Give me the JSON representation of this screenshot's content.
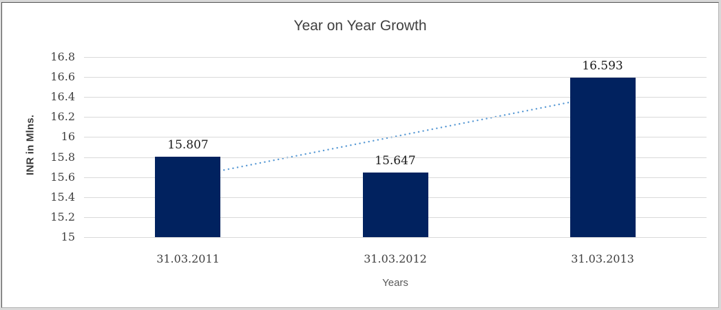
{
  "chart_data": {
    "type": "bar",
    "title": "Year on Year Growth",
    "categories": [
      "31.03.2011",
      "31.03.2012",
      "31.03.2013"
    ],
    "values": [
      15.807,
      15.647,
      16.593
    ],
    "data_labels": [
      "15.807",
      "15.647",
      "16.593"
    ],
    "xlabel": "Years",
    "ylabel": "INR in Mlns.",
    "ylim": [
      15,
      16.8
    ],
    "ytick_labels": [
      "16.8",
      "16.6",
      "16.4",
      "16.2",
      "16",
      "15.8",
      "15.6",
      "15.4",
      "15.2",
      "15"
    ],
    "grid": true,
    "legend": "none",
    "bar_color": "#01225f",
    "trendline": {
      "type": "linear",
      "style": "dotted",
      "color": "#5b9bd5",
      "start_value": 15.6,
      "end_value": 16.41
    }
  }
}
